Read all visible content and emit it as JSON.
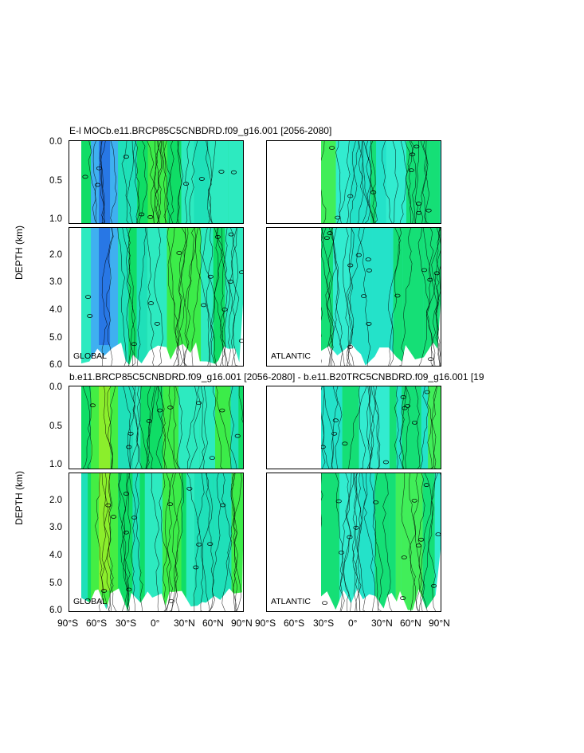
{
  "figure": {
    "top_title": "E-l MOCb.e11.BRCP85C5CNBDRD.f09_g16.001 [2056-2080]",
    "bottom_title": "b.e11.BRCP85C5CNBDRD.f09_g16.001 [2056-2080] - b.e11.B20TRC5CNBDRD.f09_g16.001 [19",
    "ylabel": "DEPTH (km)",
    "upper_ticks": [
      "0.0",
      "0.5",
      "1.0"
    ],
    "lower_ticks": [
      "2.0",
      "3.0",
      "4.0",
      "5.0",
      "6.0"
    ],
    "xticks_left": [
      "90°S",
      "60°S",
      "30°S",
      "0°",
      "30°N",
      "60°N",
      "90°N"
    ],
    "xticks_right": [
      "90°S",
      "60°S",
      "30°S",
      "0°",
      "30°N",
      "60°N",
      "90°N"
    ],
    "region_global": "GLOBAL",
    "region_atlantic": "ATLANTIC",
    "colors": {
      "deep_blue": "#1f5fe0",
      "light_blue": "#3fb0f0",
      "cyan": "#22e0c8",
      "aqua": "#33ecd0",
      "green": "#11dd66",
      "lime": "#44ee44",
      "yellow_green": "#aaee22"
    }
  },
  "chart_data": [
    {
      "type": "heatmap",
      "title": "E-l MOCb.e11.BRCP85C5CNBDRD.f09_g16.001 [2056-2080]",
      "panel": "GLOBAL",
      "ylabel": "DEPTH (km)",
      "x_range": [
        "90°S",
        "90°N"
      ],
      "y_range_km": [
        0,
        6
      ],
      "xticks": [
        "90°S",
        "60°S",
        "30°S",
        "0°",
        "30°N",
        "60°N",
        "90°N"
      ],
      "yticks": [
        "0.0",
        "0.5",
        "1.0",
        "2.0",
        "3.0",
        "4.0",
        "5.0",
        "6.0"
      ]
    },
    {
      "type": "heatmap",
      "title": "E-l MOCb.e11.BRCP85C5CNBDRD.f09_g16.001 [2056-2080]",
      "panel": "ATLANTIC",
      "x_range": [
        "90°S",
        "90°N"
      ],
      "y_range_km": [
        0,
        6
      ]
    },
    {
      "type": "heatmap",
      "title": "b.e11.BRCP85C5CNBDRD.f09_g16.001 [2056-2080] - b.e11.B20TRC5CNBDRD.f09_g16.001 [19",
      "panel": "GLOBAL",
      "ylabel": "DEPTH (km)",
      "x_range": [
        "90°S",
        "90°N"
      ],
      "y_range_km": [
        0,
        6
      ]
    },
    {
      "type": "heatmap",
      "title": "b.e11.BRCP85C5CNBDRD.f09_g16.001 [2056-2080] - b.e11.B20TRC5CNBDRD.f09_g16.001 [19",
      "panel": "ATLANTIC",
      "x_range": [
        "90°S",
        "90°N"
      ],
      "y_range_km": [
        0,
        6
      ]
    }
  ]
}
